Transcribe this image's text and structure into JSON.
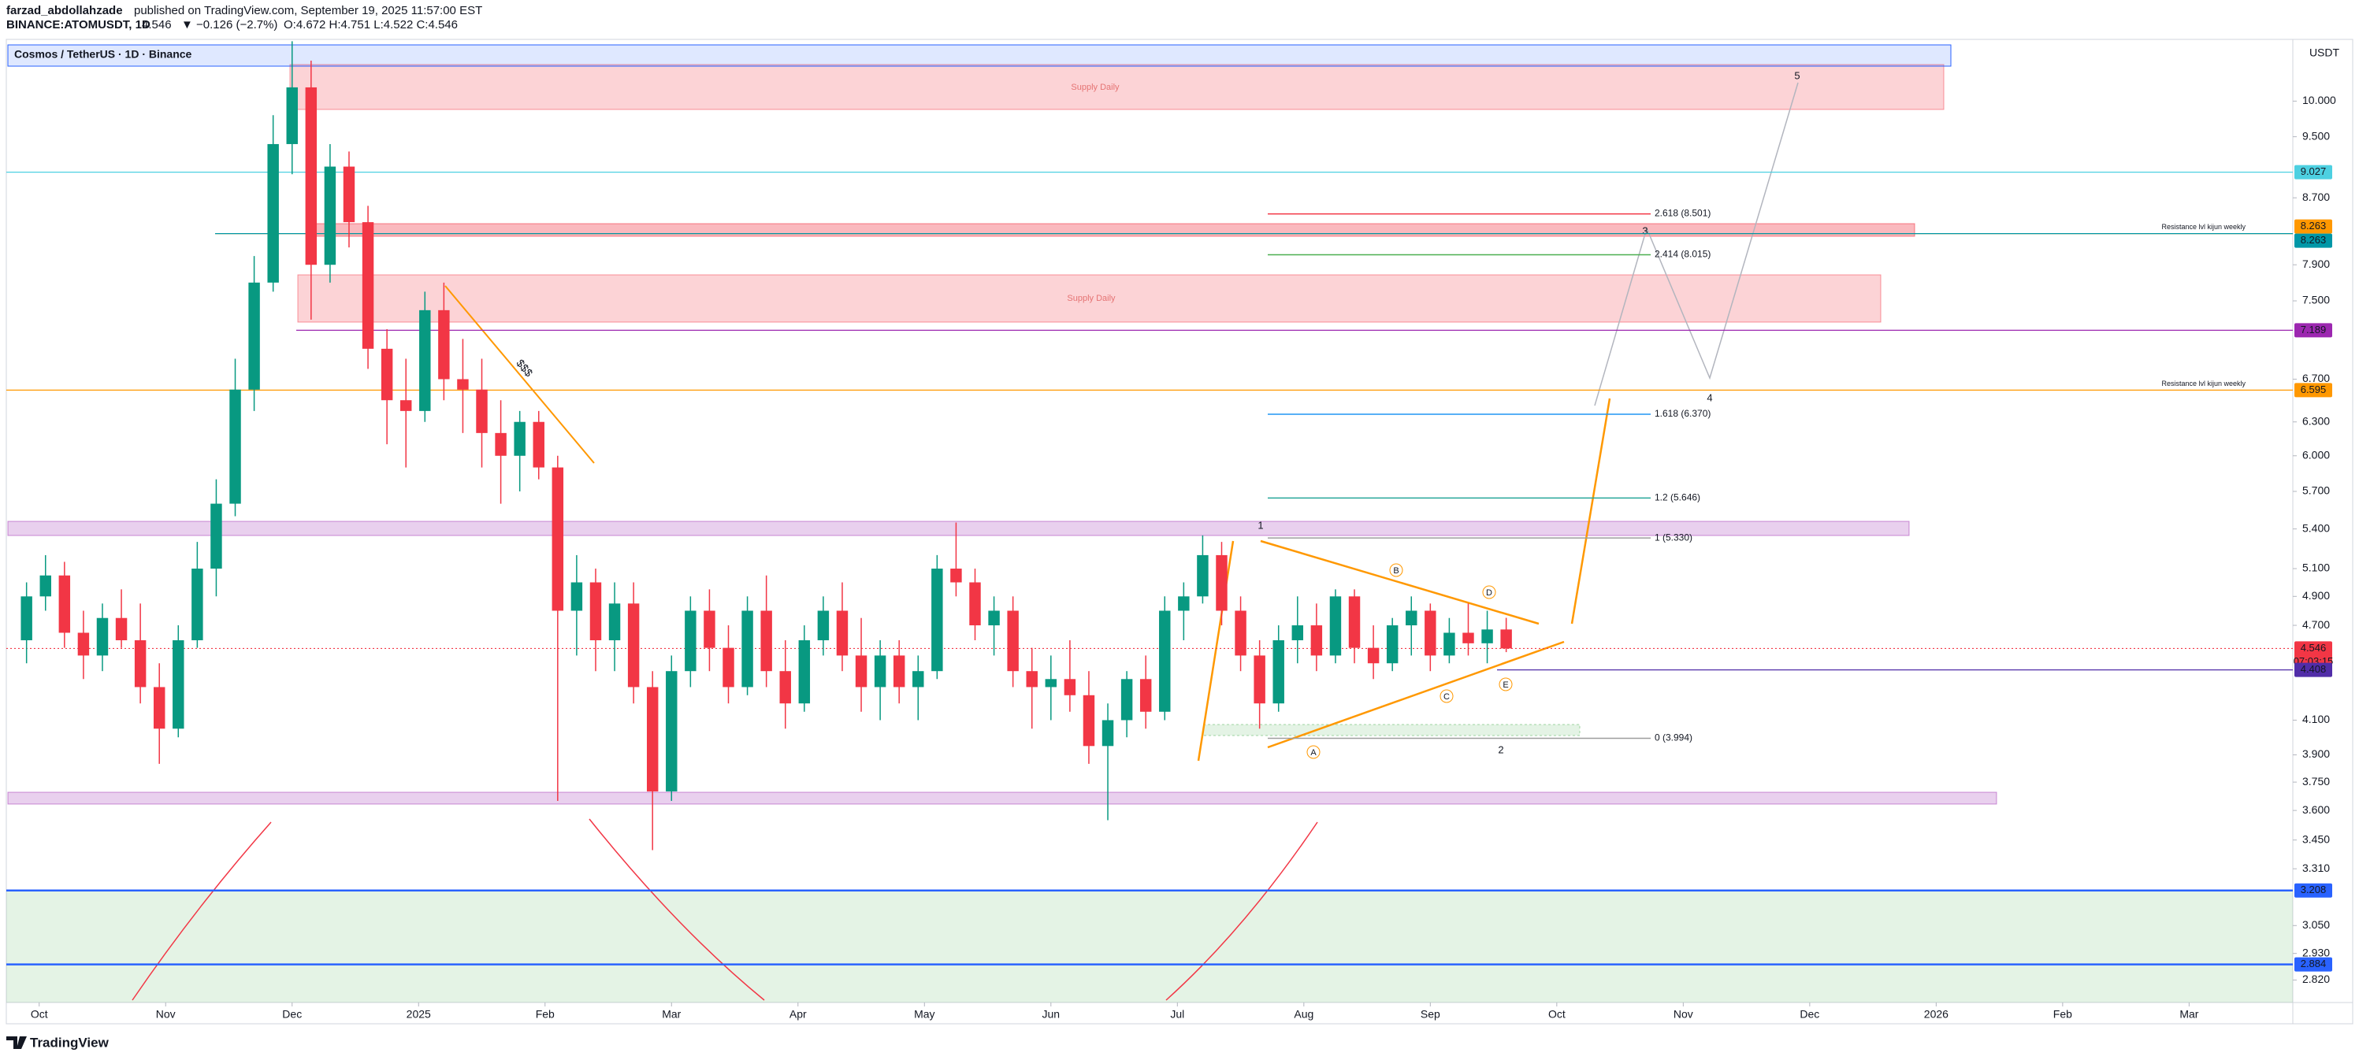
{
  "header": {
    "author": "farzad_abdollahzade",
    "published": "published on TradingView.com, September 19, 2025 11:57:00 EST",
    "symbol": "BINANCE:ATOMUSDT, 1D",
    "last": "4.546",
    "change": "▼ −0.126 (−2.7%)",
    "ohlc": "O:4.672 H:4.751 L:4.522 C:4.546"
  },
  "chart_data": {
    "type": "candlestick",
    "title": "Cosmos / TetherUS · 1D · Binance",
    "currency": "USDT",
    "up_color": "#089981",
    "down_color": "#f23645",
    "log_scale": true,
    "x": [
      -0.1,
      0.05,
      0.2,
      0.35,
      0.5,
      0.65,
      0.8,
      0.95,
      1.1,
      1.25,
      1.4,
      1.55,
      1.7,
      1.85,
      2,
      2.15,
      2.3,
      2.45,
      2.6,
      2.75,
      2.9,
      3.05,
      3.2,
      3.35,
      3.5,
      3.65,
      3.8,
      3.95,
      4.1,
      4.25,
      4.4,
      4.55,
      4.7,
      4.85,
      5,
      5.15,
      5.3,
      5.45,
      5.6,
      5.75,
      5.9,
      6.05,
      6.2,
      6.35,
      6.5,
      6.65,
      6.8,
      6.95,
      7.1,
      7.25,
      7.4,
      7.55,
      7.7,
      7.85,
      8,
      8.15,
      8.3,
      8.45,
      8.6,
      8.75,
      8.9,
      9.05,
      9.2,
      9.35,
      9.5,
      9.65,
      9.8,
      9.95,
      10.1,
      10.25,
      10.4,
      10.55,
      10.7,
      10.85,
      11,
      11.15,
      11.3,
      11.45,
      11.6
    ],
    "open": [
      4.6,
      4.9,
      5.05,
      4.65,
      4.5,
      4.75,
      4.6,
      4.3,
      4.05,
      4.6,
      5.1,
      5.6,
      6.6,
      7.7,
      9.4,
      10.2,
      7.9,
      9.1,
      8.4,
      7.0,
      6.5,
      6.4,
      7.4,
      6.7,
      6.6,
      6.2,
      6.0,
      6.3,
      5.9,
      4.8,
      5.0,
      4.6,
      4.85,
      4.3,
      3.7,
      4.4,
      4.8,
      4.55,
      4.3,
      4.8,
      4.4,
      4.2,
      4.6,
      4.8,
      4.5,
      4.3,
      4.5,
      4.3,
      4.4,
      5.1,
      5.0,
      4.7,
      4.8,
      4.4,
      4.3,
      4.35,
      4.25,
      3.95,
      4.1,
      4.35,
      4.15,
      4.8,
      4.9,
      5.2,
      4.8,
      4.5,
      4.2,
      4.6,
      4.7,
      4.5,
      4.9,
      4.55,
      4.45,
      4.7,
      4.8,
      4.5,
      4.65,
      4.58,
      4.672
    ],
    "high": [
      5.0,
      5.2,
      5.15,
      4.8,
      4.85,
      4.95,
      4.85,
      4.45,
      4.7,
      5.3,
      5.8,
      6.9,
      8.0,
      9.8,
      10.9,
      10.6,
      9.4,
      9.3,
      8.6,
      7.2,
      6.9,
      7.6,
      7.7,
      7.1,
      6.9,
      6.5,
      6.4,
      6.4,
      6.0,
      5.2,
      5.1,
      5.0,
      5.0,
      4.4,
      4.5,
      4.9,
      4.95,
      4.7,
      4.9,
      5.05,
      4.6,
      4.7,
      4.9,
      5.0,
      4.75,
      4.6,
      4.6,
      4.5,
      5.2,
      5.45,
      5.1,
      4.9,
      4.9,
      4.55,
      4.5,
      4.6,
      4.4,
      4.2,
      4.4,
      4.5,
      4.9,
      5.0,
      5.35,
      5.3,
      4.9,
      4.6,
      4.7,
      4.9,
      4.85,
      4.95,
      4.95,
      4.7,
      4.75,
      4.9,
      4.85,
      4.75,
      4.85,
      4.8,
      4.751
    ],
    "low": [
      4.45,
      4.8,
      4.55,
      4.35,
      4.4,
      4.55,
      4.2,
      3.85,
      4.0,
      4.55,
      4.9,
      5.5,
      6.4,
      7.6,
      9.0,
      7.3,
      7.7,
      8.1,
      6.8,
      6.1,
      5.9,
      6.3,
      6.5,
      6.2,
      5.9,
      5.6,
      5.7,
      5.8,
      3.65,
      4.5,
      4.4,
      4.4,
      4.2,
      3.4,
      3.65,
      4.3,
      4.4,
      4.2,
      4.25,
      4.3,
      4.05,
      4.15,
      4.5,
      4.4,
      4.15,
      4.1,
      4.2,
      4.1,
      4.35,
      4.9,
      4.6,
      4.5,
      4.3,
      4.05,
      4.1,
      4.15,
      3.85,
      3.55,
      4.0,
      4.05,
      4.1,
      4.6,
      4.85,
      4.7,
      4.4,
      4.05,
      4.15,
      4.45,
      4.4,
      4.45,
      4.45,
      4.35,
      4.4,
      4.5,
      4.4,
      4.45,
      4.5,
      4.45,
      4.522
    ],
    "close": [
      4.9,
      5.05,
      4.65,
      4.5,
      4.75,
      4.6,
      4.3,
      4.05,
      4.6,
      5.1,
      5.6,
      6.6,
      7.7,
      9.4,
      10.2,
      7.9,
      9.1,
      8.4,
      7.0,
      6.5,
      6.4,
      7.4,
      6.7,
      6.6,
      6.2,
      6.0,
      6.3,
      5.9,
      4.8,
      5.0,
      4.6,
      4.85,
      4.3,
      3.7,
      4.4,
      4.8,
      4.55,
      4.3,
      4.8,
      4.4,
      4.2,
      4.6,
      4.8,
      4.5,
      4.3,
      4.5,
      4.3,
      4.4,
      5.1,
      5.0,
      4.7,
      4.8,
      4.4,
      4.3,
      4.35,
      4.25,
      3.95,
      4.1,
      4.35,
      4.15,
      4.8,
      4.9,
      5.2,
      4.8,
      4.5,
      4.2,
      4.6,
      4.7,
      4.5,
      4.9,
      4.55,
      4.45,
      4.7,
      4.8,
      4.5,
      4.65,
      4.58,
      4.672,
      4.546
    ],
    "ylim": [
      2.73,
      10.93
    ],
    "yticks": [
      {
        "value": 10,
        "label": "10.000"
      },
      {
        "value": 9.5,
        "label": "9.500"
      },
      {
        "value": 8.7,
        "label": "8.700"
      },
      {
        "value": 7.9,
        "label": "7.900"
      },
      {
        "value": 7.5,
        "label": "7.500"
      },
      {
        "value": 6.7,
        "label": "6.700"
      },
      {
        "value": 6.3,
        "label": "6.300"
      },
      {
        "value": 6,
        "label": "6.000"
      },
      {
        "value": 5.7,
        "label": "5.700"
      },
      {
        "value": 5.4,
        "label": "5.400"
      },
      {
        "value": 5.1,
        "label": "5.100"
      },
      {
        "value": 4.9,
        "label": "4.900"
      },
      {
        "value": 4.7,
        "label": "4.700"
      },
      {
        "value": 4.1,
        "label": "4.100"
      },
      {
        "value": 3.9,
        "label": "3.900"
      },
      {
        "value": 3.75,
        "label": "3.750"
      },
      {
        "value": 3.6,
        "label": "3.600"
      },
      {
        "value": 3.45,
        "label": "3.450"
      },
      {
        "value": 3.31,
        "label": "3.310"
      },
      {
        "value": 3.05,
        "label": "3.050"
      },
      {
        "value": 2.93,
        "label": "2.930"
      },
      {
        "value": 2.82,
        "label": "2.820"
      }
    ],
    "xlim": [
      -0.26,
      17.82
    ],
    "xticks": [
      {
        "value": 0,
        "label": "Oct"
      },
      {
        "value": 1,
        "label": "Nov"
      },
      {
        "value": 2,
        "label": "Dec"
      },
      {
        "value": 3,
        "label": "2025"
      },
      {
        "value": 4,
        "label": "Feb"
      },
      {
        "value": 5,
        "label": "Mar"
      },
      {
        "value": 6,
        "label": "Apr"
      },
      {
        "value": 7,
        "label": "May"
      },
      {
        "value": 8,
        "label": "Jun"
      },
      {
        "value": 9,
        "label": "Jul"
      },
      {
        "value": 10,
        "label": "Aug"
      },
      {
        "value": 11,
        "label": "Sep"
      },
      {
        "value": 12,
        "label": "Oct"
      },
      {
        "value": 13,
        "label": "Nov"
      },
      {
        "value": 14,
        "label": "Dec"
      },
      {
        "value": 15,
        "label": "2026"
      },
      {
        "value": 16,
        "label": "Feb"
      },
      {
        "value": 17,
        "label": "Mar"
      }
    ],
    "price_lines": [
      {
        "value": 9.027,
        "color": "#4dd0e1"
      },
      {
        "value": 8.263,
        "color": "#ff9800"
      },
      {
        "value": 8.263,
        "color": "#0097a7"
      },
      {
        "value": 7.189,
        "color": "#9c27b0"
      },
      {
        "value": 6.595,
        "color": "#ff9800"
      },
      {
        "value": 4.546,
        "color": "#f23645"
      },
      {
        "value": 4.408,
        "color": "#512da8"
      },
      {
        "value": 3.208,
        "color": "#2962ff"
      },
      {
        "value": 2.884,
        "color": "#2962ff"
      }
    ],
    "countdown": "07:03:15",
    "fib_levels": [
      {
        "label": "2.618 (8.501)",
        "value": 8.501,
        "color": "#f23645"
      },
      {
        "label": "2.414 (8.015)",
        "value": 8.015,
        "color": "#4caf50"
      },
      {
        "label": "1.618 (6.370)",
        "value": 6.37,
        "color": "#2196f3"
      },
      {
        "label": "1.2 (5.646)",
        "value": 5.646,
        "color": "#26a69a"
      },
      {
        "label": "1 (5.330)",
        "value": 5.33,
        "color": "#9e9e9e"
      },
      {
        "label": "0 (3.994)",
        "value": 3.994,
        "color": "#9e9e9e"
      }
    ],
    "zone_labels": [
      "Supply Daily",
      "Supply Daily"
    ],
    "wave_labels": [
      "1",
      "2",
      "3",
      "4",
      "5"
    ],
    "pattern_labels": [
      "A",
      "B",
      "C",
      "D",
      "E"
    ],
    "annotations": [
      "$$$",
      "Resistance lvl kijun weekly",
      "Resistance lvl kijun weekly"
    ]
  },
  "footer": {
    "brand": "TradingView"
  }
}
